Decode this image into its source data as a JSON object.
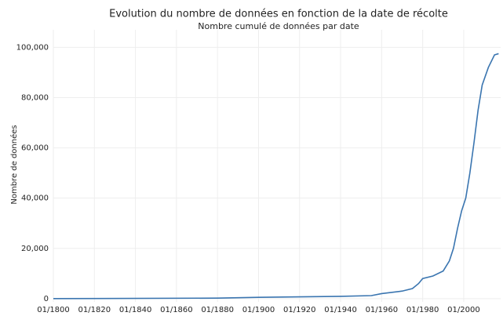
{
  "chart_data": {
    "type": "line",
    "title": "Evolution du nombre de données en fonction de la date de récolte",
    "subtitle": "Nombre cumulé de données par date",
    "y_label": "Nombre de données",
    "x": [
      1800,
      1880,
      1900,
      1920,
      1940,
      1955,
      1960,
      1970,
      1975,
      1978,
      1980,
      1985,
      1990,
      1993,
      1995,
      1997,
      1999,
      2001,
      2003,
      2005,
      2007,
      2009,
      2012,
      2015,
      2017
    ],
    "series": [
      {
        "name": "Nombre cumulé",
        "color": "#3a75b0",
        "values": [
          0,
          200,
          500,
          700,
          900,
          1200,
          2000,
          3000,
          4000,
          6000,
          8000,
          9000,
          11000,
          15000,
          20000,
          28000,
          35000,
          40000,
          50000,
          62000,
          75000,
          85000,
          92000,
          97000,
          97500
        ]
      }
    ],
    "xlim": [
      1800,
      2018
    ],
    "xticks": [
      {
        "value": 1800,
        "label": "01/1800"
      },
      {
        "value": 1820,
        "label": "01/1820"
      },
      {
        "value": 1840,
        "label": "01/1840"
      },
      {
        "value": 1860,
        "label": "01/1860"
      },
      {
        "value": 1880,
        "label": "01/1880"
      },
      {
        "value": 1900,
        "label": "01/1900"
      },
      {
        "value": 1920,
        "label": "01/1920"
      },
      {
        "value": 1940,
        "label": "01/1940"
      },
      {
        "value": 1960,
        "label": "01/1960"
      },
      {
        "value": 1980,
        "label": "01/1980"
      },
      {
        "value": 2000,
        "label": "01/2000"
      }
    ],
    "ylim": [
      -1300,
      107000
    ],
    "yticks": [
      0,
      {
        "value": 20000,
        "label": "20,000"
      },
      {
        "value": 40000,
        "label": "40,000"
      },
      {
        "value": 60000,
        "label": "60,000"
      },
      {
        "value": 80000,
        "label": "80,000"
      },
      {
        "value": 100000,
        "label": "100,000"
      }
    ],
    "grid": true
  }
}
